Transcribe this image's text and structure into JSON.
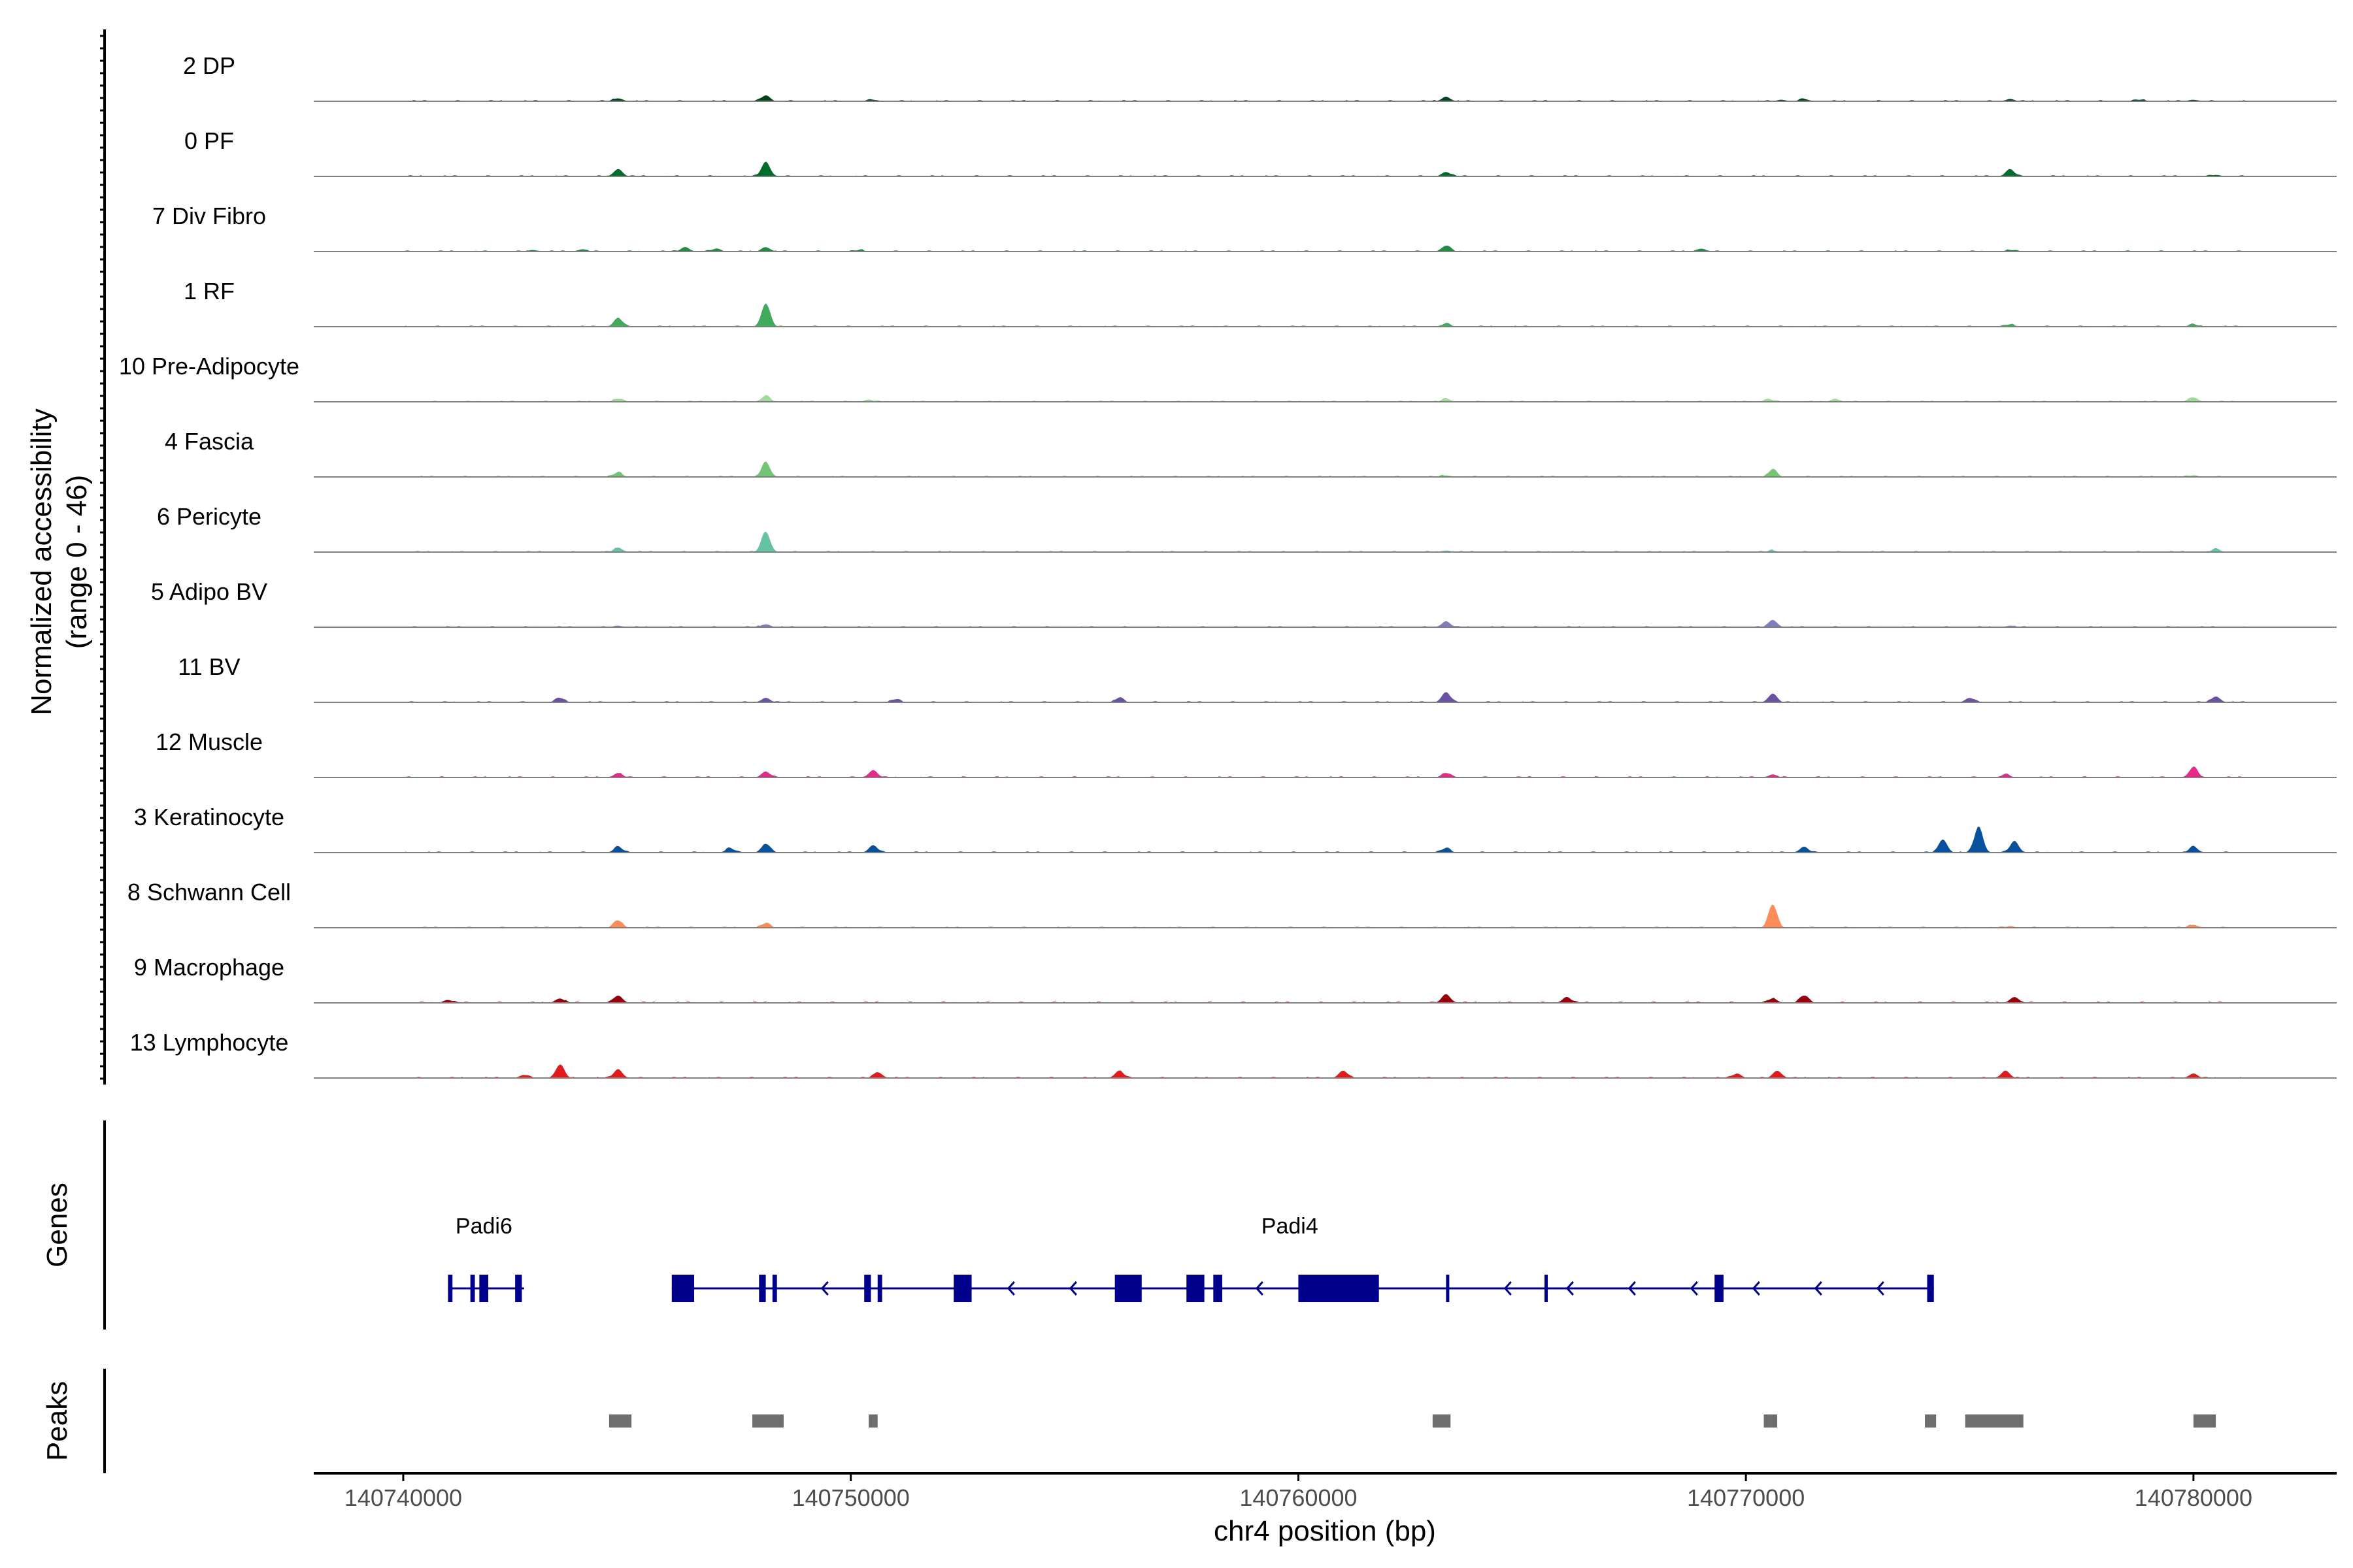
{
  "chart_data": {
    "type": "area",
    "title": "",
    "ylabel": "Normalized accessibility\n(range 0 - 46)",
    "ylabel_lines": [
      "Normalized accessibility",
      "(range 0 - 46)"
    ],
    "ylim": [
      0,
      46
    ],
    "xlabel": "chr4 position (bp)",
    "xlim": [
      140738000,
      140783200
    ],
    "x_ticks": [
      140740000,
      140750000,
      140760000,
      140770000,
      140780000
    ],
    "x_tick_labels": [
      "140740000",
      "140750000",
      "140760000",
      "140770000",
      "140780000"
    ],
    "tracks": [
      {
        "name": "2 DP",
        "color": "#00441b",
        "peaks": [
          [
            140744800,
            2
          ],
          [
            140748100,
            4
          ],
          [
            140750500,
            1
          ],
          [
            140763300,
            3
          ],
          [
            140770800,
            1
          ],
          [
            140771300,
            1.5
          ],
          [
            140775900,
            1.5
          ],
          [
            140778800,
            1
          ],
          [
            140780000,
            1
          ]
        ]
      },
      {
        "name": "0 PF",
        "color": "#006d2c",
        "peaks": [
          [
            140744800,
            5
          ],
          [
            140748100,
            10
          ],
          [
            140763300,
            3
          ],
          [
            140775900,
            5
          ],
          [
            140780500,
            1
          ]
        ]
      },
      {
        "name": "7 Div Fibro",
        "color": "#238b45",
        "peaks": [
          [
            140742900,
            1
          ],
          [
            140744000,
            1.5
          ],
          [
            140746300,
            3
          ],
          [
            140747000,
            2
          ],
          [
            140748100,
            3
          ],
          [
            140750200,
            1
          ],
          [
            140763300,
            4
          ],
          [
            140769000,
            2
          ],
          [
            140775900,
            1
          ]
        ]
      },
      {
        "name": "1 RF",
        "color": "#41ab5d",
        "peaks": [
          [
            140744800,
            6
          ],
          [
            140748100,
            16
          ],
          [
            140763300,
            2
          ],
          [
            140775900,
            1.5
          ],
          [
            140780000,
            1.5
          ]
        ]
      },
      {
        "name": "10 Pre-Adipocyte",
        "color": "#a1d99b",
        "peaks": [
          [
            140744800,
            2
          ],
          [
            140748100,
            4
          ],
          [
            140750400,
            1.5
          ],
          [
            140763300,
            2
          ],
          [
            140770500,
            2
          ],
          [
            140772000,
            2
          ],
          [
            140780000,
            3
          ]
        ]
      },
      {
        "name": "4 Fascia",
        "color": "#74c476",
        "peaks": [
          [
            140744800,
            3
          ],
          [
            140748100,
            10
          ],
          [
            140763300,
            1
          ],
          [
            140770600,
            5
          ],
          [
            140780000,
            1
          ]
        ]
      },
      {
        "name": "6 Pericyte",
        "color": "#66c2a4",
        "peaks": [
          [
            140744800,
            3
          ],
          [
            140748100,
            14
          ],
          [
            140763300,
            1
          ],
          [
            140770600,
            1
          ],
          [
            140780500,
            2
          ]
        ]
      },
      {
        "name": "5 Adipo BV",
        "color": "#807dba",
        "peaks": [
          [
            140744800,
            1
          ],
          [
            140748100,
            2
          ],
          [
            140763300,
            4
          ],
          [
            140770600,
            5
          ],
          [
            140775900,
            1
          ]
        ]
      },
      {
        "name": "11 BV",
        "color": "#6a51a3",
        "peaks": [
          [
            140743500,
            3
          ],
          [
            140748100,
            3
          ],
          [
            140751000,
            2
          ],
          [
            140756000,
            3
          ],
          [
            140763300,
            7
          ],
          [
            140770600,
            6
          ],
          [
            140775000,
            3
          ],
          [
            140780500,
            4
          ]
        ]
      },
      {
        "name": "12 Muscle",
        "color": "#e7298a",
        "peaks": [
          [
            140744800,
            3
          ],
          [
            140748100,
            4
          ],
          [
            140750500,
            5
          ],
          [
            140763300,
            3
          ],
          [
            140770600,
            2
          ],
          [
            140775800,
            2
          ],
          [
            140780000,
            7
          ]
        ]
      },
      {
        "name": "3 Keratinocyte",
        "color": "#08519c",
        "peaks": [
          [
            140744800,
            4
          ],
          [
            140747300,
            3
          ],
          [
            140748100,
            6
          ],
          [
            140750500,
            5
          ],
          [
            140763300,
            3
          ],
          [
            140771300,
            4
          ],
          [
            140774400,
            9
          ],
          [
            140775200,
            18
          ],
          [
            140776000,
            8
          ],
          [
            140780000,
            4
          ]
        ]
      },
      {
        "name": "8 Schwann Cell",
        "color": "#fc8d59",
        "peaks": [
          [
            140744800,
            5
          ],
          [
            140748100,
            3
          ],
          [
            140770600,
            16
          ],
          [
            140775900,
            1
          ],
          [
            140780000,
            2
          ]
        ]
      },
      {
        "name": "9 Macrophage",
        "color": "#99000d",
        "peaks": [
          [
            140741000,
            2
          ],
          [
            140743500,
            3
          ],
          [
            140744800,
            5
          ],
          [
            140763300,
            6
          ],
          [
            140766000,
            4
          ],
          [
            140770600,
            3
          ],
          [
            140771300,
            5
          ],
          [
            140776000,
            4
          ]
        ]
      },
      {
        "name": "13 Lymphocyte",
        "color": "#e31a1c",
        "peaks": [
          [
            140742700,
            2
          ],
          [
            140743500,
            9
          ],
          [
            140744800,
            6
          ],
          [
            140750600,
            4
          ],
          [
            140756000,
            5
          ],
          [
            140761000,
            5
          ],
          [
            140769800,
            3
          ],
          [
            140770700,
            5
          ],
          [
            140775800,
            5
          ],
          [
            140780000,
            3
          ]
        ]
      }
    ],
    "genes": {
      "label": "Genes",
      "color": "#00008b",
      "items": [
        {
          "name": "Padi6",
          "start": 140741000,
          "end": 140742700,
          "strand": "-",
          "exons": [
            [
              140741000,
              140741100
            ],
            [
              140741500,
              140741600
            ],
            [
              140741700,
              140741900
            ],
            [
              140742500,
              140742650
            ]
          ]
        },
        {
          "name": "Padi4",
          "start": 140746000,
          "end": 140774200,
          "strand": "-",
          "exons": [
            [
              140746000,
              140746500
            ],
            [
              140747950,
              140748100
            ],
            [
              140748250,
              140748350
            ],
            [
              140750300,
              140750450
            ],
            [
              140750600,
              140750700
            ],
            [
              140752300,
              140752700
            ],
            [
              140755900,
              140756500
            ],
            [
              140757500,
              140757900
            ],
            [
              140758100,
              140758300
            ],
            [
              140760000,
              140761800
            ],
            [
              140763300,
              140763350
            ],
            [
              140765500,
              140765550
            ],
            [
              140769300,
              140769500
            ],
            [
              140774050,
              140774200
            ]
          ]
        }
      ]
    },
    "peaks_track": {
      "label": "Peaks",
      "color": "#6e6e6e",
      "regions": [
        [
          140744600,
          140745100
        ],
        [
          140747800,
          140748500
        ],
        [
          140750400,
          140750600
        ],
        [
          140763000,
          140763400
        ],
        [
          140770400,
          140770700
        ],
        [
          140774000,
          140774250
        ],
        [
          140774900,
          140776200
        ],
        [
          140780000,
          140780500
        ]
      ]
    }
  }
}
